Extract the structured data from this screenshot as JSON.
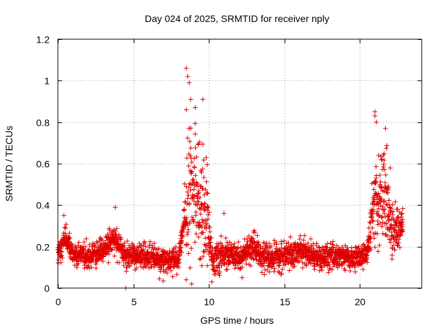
{
  "chart_data": {
    "type": "scatter",
    "title": "Day 024 of 2025, SRMTID for receiver nply",
    "xlabel": "GPS time / hours",
    "ylabel": "SRMTID / TECUs",
    "xlim": [
      0,
      24.1
    ],
    "ylim": [
      0,
      1.2
    ],
    "xticks": [
      0,
      5,
      10,
      15,
      20
    ],
    "xtick_labels": [
      "0",
      "5",
      "10",
      "15",
      "20"
    ],
    "yticks": [
      0,
      0.2,
      0.4,
      0.6,
      0.8,
      1.0,
      1.2
    ],
    "ytick_labels": [
      "0",
      "0.2",
      "0.4",
      "0.6",
      "0.8",
      "1",
      "1.2"
    ],
    "grid": true,
    "marker": "+",
    "series": [
      {
        "name": "SRMTID",
        "color": "#e00000",
        "profile": [
          {
            "x": 0.0,
            "y": 0.16
          },
          {
            "x": 0.5,
            "y": 0.25
          },
          {
            "x": 1.0,
            "y": 0.16
          },
          {
            "x": 2.0,
            "y": 0.15
          },
          {
            "x": 3.0,
            "y": 0.19
          },
          {
            "x": 3.8,
            "y": 0.24
          },
          {
            "x": 4.5,
            "y": 0.15
          },
          {
            "x": 5.5,
            "y": 0.16
          },
          {
            "x": 7.0,
            "y": 0.13
          },
          {
            "x": 8.0,
            "y": 0.14
          },
          {
            "x": 8.6,
            "y": 0.45
          },
          {
            "x": 9.2,
            "y": 0.48
          },
          {
            "x": 9.8,
            "y": 0.36
          },
          {
            "x": 10.3,
            "y": 0.13
          },
          {
            "x": 11.0,
            "y": 0.16
          },
          {
            "x": 12.0,
            "y": 0.15
          },
          {
            "x": 13.0,
            "y": 0.19
          },
          {
            "x": 14.0,
            "y": 0.14
          },
          {
            "x": 15.0,
            "y": 0.15
          },
          {
            "x": 16.0,
            "y": 0.18
          },
          {
            "x": 17.5,
            "y": 0.14
          },
          {
            "x": 18.5,
            "y": 0.16
          },
          {
            "x": 19.5,
            "y": 0.14
          },
          {
            "x": 20.5,
            "y": 0.17
          },
          {
            "x": 21.0,
            "y": 0.45
          },
          {
            "x": 21.7,
            "y": 0.45
          },
          {
            "x": 22.2,
            "y": 0.28
          },
          {
            "x": 22.8,
            "y": 0.3
          }
        ],
        "spread": [
          {
            "x": 0.0,
            "s": 0.05
          },
          {
            "x": 8.3,
            "s": 0.05
          },
          {
            "x": 8.6,
            "s": 0.28
          },
          {
            "x": 9.8,
            "s": 0.22
          },
          {
            "x": 10.2,
            "s": 0.06
          },
          {
            "x": 20.6,
            "s": 0.05
          },
          {
            "x": 21.0,
            "s": 0.2
          },
          {
            "x": 21.8,
            "s": 0.2
          },
          {
            "x": 22.3,
            "s": 0.09
          },
          {
            "x": 22.8,
            "s": 0.08
          }
        ],
        "highlights": [
          {
            "x": 4.5,
            "y": 0.0
          },
          {
            "x": 8.5,
            "y": 1.06
          },
          {
            "x": 8.6,
            "y": 1.02
          },
          {
            "x": 8.7,
            "y": 0.99
          },
          {
            "x": 8.8,
            "y": 0.91
          },
          {
            "x": 9.6,
            "y": 0.91
          },
          {
            "x": 9.1,
            "y": 0.87
          },
          {
            "x": 8.5,
            "y": 0.86
          },
          {
            "x": 21.0,
            "y": 0.85
          },
          {
            "x": 21.0,
            "y": 0.83
          },
          {
            "x": 21.7,
            "y": 0.77
          },
          {
            "x": 21.1,
            "y": 0.8
          },
          {
            "x": 3.8,
            "y": 0.39
          },
          {
            "x": 0.4,
            "y": 0.35
          },
          {
            "x": 11.0,
            "y": 0.36
          },
          {
            "x": 7.0,
            "y": 0.08
          },
          {
            "x": 10.2,
            "y": 0.03
          },
          {
            "x": 8.5,
            "y": 0.04
          },
          {
            "x": 12.2,
            "y": 0.05
          },
          {
            "x": 22.5,
            "y": 0.38
          },
          {
            "x": 22.8,
            "y": 0.36
          }
        ]
      }
    ],
    "sampling": {
      "x_start": 0.0,
      "x_end": 22.85,
      "points_per_hour": 110,
      "seed": 24
    }
  }
}
